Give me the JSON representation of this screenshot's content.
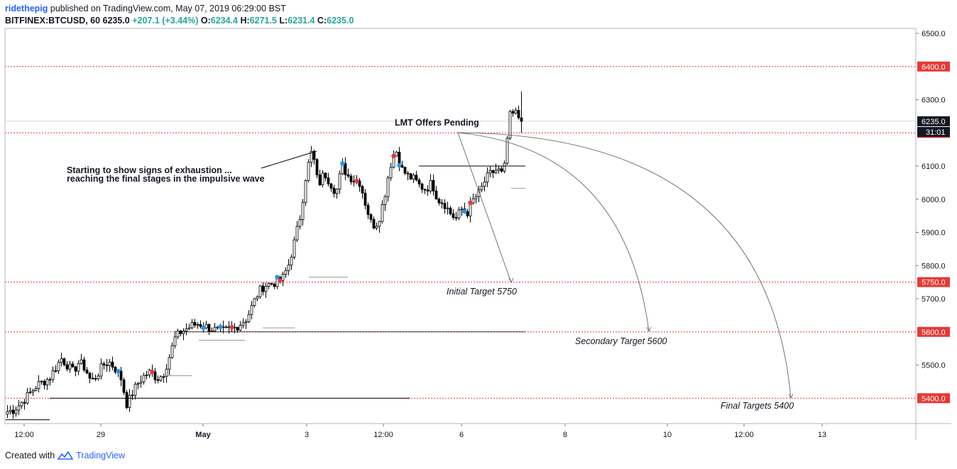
{
  "header": {
    "author": "ridethepig",
    "published": "published on TradingView.com, May 07, 2019 06:29:00 BST",
    "symbol": "BITFINEX:BTCUSD, 60",
    "last": "6235.0",
    "change": "+207.1 (+3.44%)",
    "o_label": "O:",
    "o": "6234.4",
    "h_label": "H:",
    "h": "6271.5",
    "l_label": "L:",
    "l": "6231.4",
    "c_label": "C:",
    "c": "6235.0"
  },
  "footer": {
    "created_with": "Created with",
    "brand": "TradingView"
  },
  "colors": {
    "level": "#e53935",
    "up": "#ffffff",
    "down": "#000000",
    "blue_dot": "#2196f3",
    "red_dot": "#e53935",
    "brand": "#2962ff"
  },
  "chart_data": {
    "type": "candlestick",
    "title": "",
    "ylim": [
      5330,
      6520
    ],
    "y_ticks": [
      "6500.0",
      "6400.0",
      "6300.0",
      "6200.0",
      "6100.0",
      "6000.0",
      "5900.0",
      "5800.0",
      "5750.0",
      "5700.0",
      "5600.0",
      "5500.0",
      "5400.0"
    ],
    "x_ticks": [
      "12:00",
      "29",
      "May",
      "3",
      "12:00",
      "6",
      "8",
      "10",
      "12:00",
      "13"
    ],
    "last_price_label": "6235.0",
    "countdown_label": "31:01",
    "levels": [
      {
        "value": 6400,
        "label": "6400.0"
      },
      {
        "value": 6200,
        "label": "6200.0"
      },
      {
        "value": 5750,
        "label": "5750.0"
      },
      {
        "value": 5600,
        "label": "5600.0"
      },
      {
        "value": 5400,
        "label": "5400.0"
      }
    ],
    "annotations": [
      {
        "text": "LMT Offers Pending"
      },
      {
        "text": "Starting to show signs of exhaustion ..."
      },
      {
        "text": "reaching the final stages in the impulsive wave"
      },
      {
        "text": "Initial Target 5750"
      },
      {
        "text": "Secondary Target 5600"
      },
      {
        "text": "Final Targets 5400"
      }
    ],
    "close_path": [
      5360,
      5365,
      5380,
      5400,
      5420,
      5440,
      5450,
      5460,
      5490,
      5520,
      5500,
      5480,
      5510,
      5490,
      5450,
      5470,
      5500,
      5510,
      5490,
      5460,
      5380,
      5420,
      5450,
      5470,
      5480,
      5460,
      5470,
      5520,
      5580,
      5600,
      5610,
      5620,
      5625,
      5618,
      5610,
      5605,
      5600,
      5608,
      5612,
      5625,
      5640,
      5680,
      5720,
      5740,
      5745,
      5750,
      5760,
      5800,
      5870,
      5950,
      6080,
      6150,
      6040,
      6080,
      6050,
      6020,
      6100,
      6070,
      6060,
      6050,
      5980,
      5920,
      5930,
      6000,
      6100,
      6150,
      6090,
      6070,
      6060,
      6040,
      6030,
      6050,
      6000,
      5990,
      5960,
      5940,
      5970,
      5960,
      6000,
      6020,
      6060,
      6080,
      6090,
      6070,
      6250,
      6260,
      6235
    ],
    "tick_spacing": 4,
    "markers": [
      {
        "color": "blue",
        "i": 39
      },
      {
        "color": "red",
        "i": 51
      },
      {
        "color": "blue",
        "i": 69
      },
      {
        "color": "blue",
        "i": 118
      },
      {
        "color": "red",
        "i": 123
      },
      {
        "color": "blue",
        "i": 75
      },
      {
        "color": "red",
        "i": 79
      },
      {
        "color": "blue",
        "i": 95
      },
      {
        "color": "red",
        "i": 96
      },
      {
        "color": "red",
        "i": 136
      },
      {
        "color": "blue",
        "i": 138
      },
      {
        "color": "red",
        "i": 163
      },
      {
        "color": "blue",
        "i": 161
      }
    ]
  }
}
